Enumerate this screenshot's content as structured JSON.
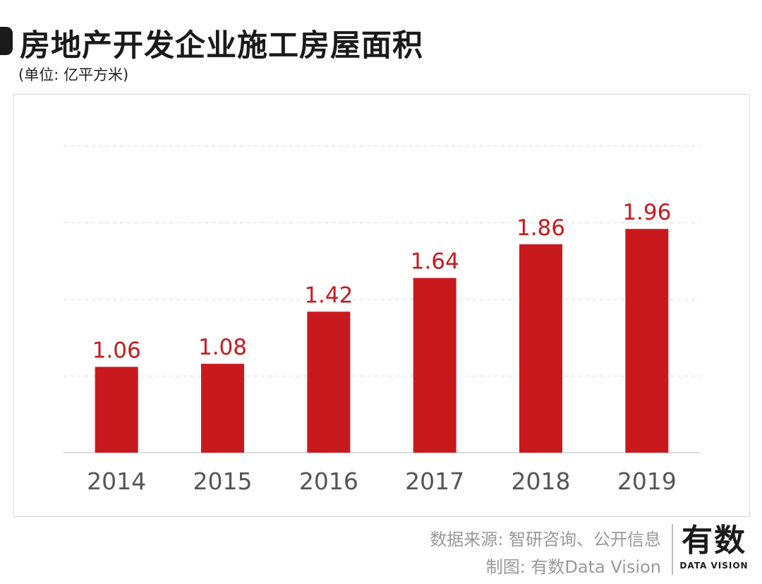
{
  "header": {
    "title": "房地产开发企业施工房屋面积",
    "unit": "(单位: 亿平方米)"
  },
  "chart_data": {
    "type": "bar",
    "title": "房地产开发企业施工房屋面积",
    "ylabel": "亿平方米",
    "categories": [
      "2014",
      "2015",
      "2016",
      "2017",
      "2018",
      "2019"
    ],
    "values": [
      1.06,
      1.08,
      1.42,
      1.64,
      1.86,
      1.96
    ],
    "value_labels": [
      "1.06",
      "1.08",
      "1.42",
      "1.64",
      "1.86",
      "1.96"
    ],
    "ylim": [
      0.5,
      2.5
    ],
    "grid": true,
    "bar_color": "#c81a1e"
  },
  "footer": {
    "source": "数据来源: 智研咨询、公开信息",
    "credit": "制图: 有数Data Vision",
    "logo_cn": "有数",
    "logo_en": "DATA VISION"
  }
}
